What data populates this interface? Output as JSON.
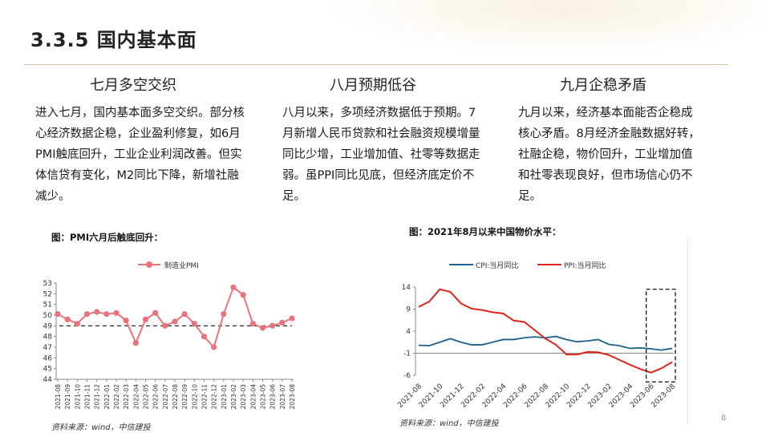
{
  "slide": {
    "title": "3.3.5  国内基本面",
    "page_number": "8"
  },
  "columns": [
    {
      "heading": "七月多空交织",
      "text": "进入七月，国内基本面多空交织。部分核心经济数据企稳，企业盈利修复，如6月PMI触底回升，工业企业利润改善。但实体信贷有变化，M2同比下降，新增社融减少。"
    },
    {
      "heading": "八月预期低谷",
      "text": "八月以来，多项经济数据低于预期。7月新增人民币贷款和社会融资规模增量同比少增，工业增加值、社零等数据走弱。虽PPI同比见底，但经济底定价不足。"
    },
    {
      "heading": "九月企稳矛盾",
      "text": "九月以来，经济基本面能否企稳成核心矛盾。8月经济金融数据好转，社融企稳，物价回升，工业增加值和社零表现良好，但市场信心仍不足。"
    }
  ],
  "figures": [
    {
      "caption": "图：PMI六月后触底回升：",
      "source": "资料来源：wind，中信建投"
    },
    {
      "caption": "图：2021年8月以来中国物价水平：",
      "source": "资料来源：wind，中信建投"
    }
  ],
  "colors": {
    "pmi": "#e8737a",
    "cpi": "#1f5f8b",
    "ppi": "#e0241b",
    "rule": "#d8c9a6"
  },
  "chart_data": [
    {
      "type": "line",
      "legend": [
        "制造业PMI"
      ],
      "reference_line": 49.0,
      "ylim": [
        44,
        53
      ],
      "yticks": [
        44,
        45,
        46,
        47,
        48,
        49,
        50,
        51,
        52,
        53
      ],
      "x": [
        "2021-08",
        "2021-09",
        "2021-10",
        "2021-11",
        "2021-12",
        "2022-01",
        "2022-02",
        "2022-03",
        "2022-04",
        "2022-05",
        "2022-06",
        "2022-07",
        "2022-08",
        "2022-09",
        "2022-10",
        "2022-11",
        "2022-12",
        "2023-01",
        "2023-02",
        "2023-03",
        "2023-04",
        "2023-05",
        "2023-06",
        "2023-07",
        "2023-08"
      ],
      "series": [
        {
          "name": "制造业PMI",
          "values": [
            50.1,
            49.6,
            49.2,
            50.1,
            50.3,
            50.1,
            50.2,
            49.5,
            47.4,
            49.6,
            50.2,
            49.0,
            49.4,
            50.1,
            49.2,
            48.0,
            47.0,
            50.1,
            52.6,
            51.9,
            49.2,
            48.8,
            49.0,
            49.3,
            49.7
          ]
        }
      ]
    },
    {
      "type": "line",
      "legend": [
        "CPI:当月同比",
        "PPI:当月同比"
      ],
      "ylim": [
        -6,
        14
      ],
      "yticks": [
        14,
        9,
        4,
        -1,
        -6
      ],
      "xticks": [
        "2021-08",
        "2021-10",
        "2021-12",
        "2022-02",
        "2022-04",
        "2022-06",
        "2022-08",
        "2022-10",
        "2022-12",
        "2023-02",
        "2023-04",
        "2023-06",
        "2023-08"
      ],
      "x": [
        "2021-08",
        "2021-09",
        "2021-10",
        "2021-11",
        "2021-12",
        "2022-01",
        "2022-02",
        "2022-03",
        "2022-04",
        "2022-05",
        "2022-06",
        "2022-07",
        "2022-08",
        "2022-09",
        "2022-10",
        "2022-11",
        "2022-12",
        "2023-01",
        "2023-02",
        "2023-03",
        "2023-04",
        "2023-05",
        "2023-06",
        "2023-07",
        "2023-08"
      ],
      "series": [
        {
          "name": "CPI:当月同比",
          "values": [
            0.8,
            0.7,
            1.5,
            2.3,
            1.5,
            0.9,
            0.9,
            1.5,
            2.1,
            2.1,
            2.5,
            2.7,
            2.5,
            2.8,
            2.1,
            1.6,
            1.8,
            2.1,
            1.0,
            0.7,
            0.1,
            0.2,
            0.0,
            -0.3,
            0.1
          ]
        },
        {
          "name": "PPI:当月同比",
          "values": [
            9.5,
            10.7,
            13.5,
            12.9,
            10.3,
            9.1,
            8.8,
            8.3,
            8.0,
            6.4,
            6.1,
            4.2,
            2.3,
            0.9,
            -1.3,
            -1.3,
            -0.7,
            -0.8,
            -1.4,
            -2.5,
            -3.6,
            -4.6,
            -5.4,
            -4.4,
            -3.0
          ]
        }
      ]
    }
  ]
}
